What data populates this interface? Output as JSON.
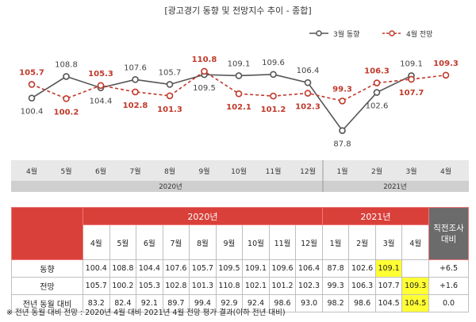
{
  "chart_data": {
    "type": "line",
    "title": "[광고경기 동향 및 전망지수 추이 - 종합]",
    "categories": [
      "4월",
      "5월",
      "6월",
      "7월",
      "8월",
      "9월",
      "10월",
      "11월",
      "12월",
      "1월",
      "2월",
      "3월",
      "4월"
    ],
    "year_groups": [
      {
        "label": "2020년",
        "span": 9
      },
      {
        "label": "2021년",
        "span": 4
      }
    ],
    "series": [
      {
        "name": "3월 동향",
        "color": "#555555",
        "dashed": false,
        "values": [
          100.4,
          108.8,
          104.4,
          107.6,
          105.7,
          109.5,
          109.1,
          109.6,
          106.4,
          87.8,
          102.6,
          109.1,
          null
        ],
        "labels": [
          "100.4",
          "108.8",
          "104.4",
          "107.6",
          "105.7",
          "109.5",
          "109.1",
          "109.6",
          "106.4",
          "87.8",
          "102.6",
          "109.1",
          ""
        ],
        "label_pos": [
          "below",
          "above",
          "below",
          "above",
          "above",
          "below",
          "above",
          "above",
          "above",
          "below",
          "below",
          "above",
          ""
        ]
      },
      {
        "name": "4월 전망",
        "color": "#c0392b",
        "dashed": true,
        "values": [
          105.7,
          100.2,
          105.3,
          102.8,
          101.3,
          110.8,
          102.1,
          101.2,
          102.3,
          99.3,
          106.3,
          107.7,
          109.3
        ],
        "labels": [
          "105.7",
          "100.2",
          "105.3",
          "102.8",
          "101.3",
          "110.8",
          "102.1",
          "101.2",
          "102.3",
          "99.3",
          "106.3",
          "107.7",
          "109.3"
        ],
        "label_pos": [
          "above",
          "below",
          "above",
          "below",
          "below",
          "above",
          "below",
          "below",
          "below",
          "above",
          "above",
          "below",
          "above"
        ]
      }
    ],
    "ylim": [
      80,
      120
    ]
  },
  "table": {
    "year_2020": "2020년",
    "year_2021": "2021년",
    "diff_header": "직전조사 대비",
    "months": [
      "4월",
      "5월",
      "6월",
      "7월",
      "8월",
      "9월",
      "10월",
      "11월",
      "12월",
      "1월",
      "2월",
      "3월",
      "4월"
    ],
    "rows": [
      {
        "label": "동향",
        "cells": [
          "100.4",
          "108.8",
          "104.4",
          "107.6",
          "105.7",
          "109.5",
          "109.1",
          "109.6",
          "106.4",
          "87.8",
          "102.6",
          "109.1",
          ""
        ],
        "diff": "+6.5"
      },
      {
        "label": "전망",
        "cells": [
          "105.7",
          "100.2",
          "105.3",
          "102.8",
          "101.3",
          "110.8",
          "102.1",
          "101.2",
          "102.3",
          "99.3",
          "106.3",
          "107.7",
          "109.3"
        ],
        "diff": "+1.6"
      },
      {
        "label": "전년 동월 대비",
        "cells": [
          "83.2",
          "82.4",
          "92.1",
          "89.7",
          "99.4",
          "92.9",
          "92.4",
          "98.6",
          "93.0",
          "98.2",
          "98.6",
          "104.5",
          "104.5"
        ],
        "diff": "0.0"
      }
    ],
    "highlight_color": "#ffff33"
  },
  "footnote": "※ 전년 동월 대비 전망 : 2020년 4월 대비 2021년 4월 전망 평가 결과(이하 전년 대비)"
}
